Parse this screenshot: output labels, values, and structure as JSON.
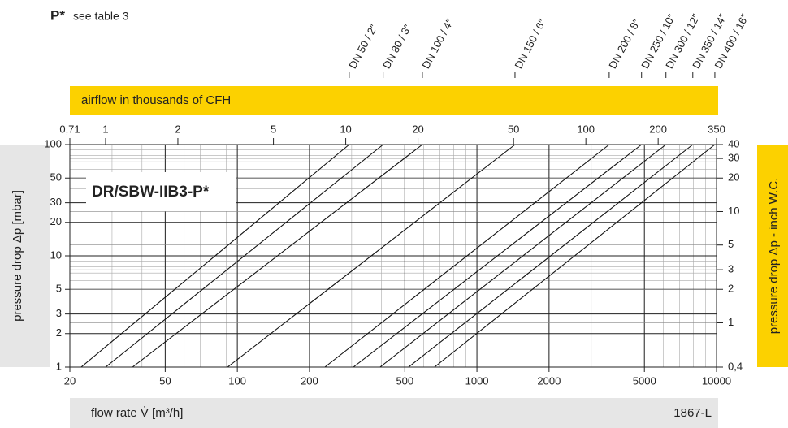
{
  "chart_data": {
    "type": "line",
    "header_mark": "P*",
    "header_note": "see table 3",
    "title": "DR/SBW-IIB3-P*",
    "code": "1867-L",
    "xlabel": "flow rate V̇ [m³/h]",
    "ylabel": "pressure drop Δp [mbar]",
    "x2label": "airflow in thousands of CFH",
    "y2label": "pressure drop Δp - inch W.C.",
    "log_x": true,
    "log_y": true,
    "grid": true,
    "xlim": [
      20,
      10000
    ],
    "xticks": [
      20,
      50,
      100,
      200,
      500,
      1000,
      2000,
      5000,
      10000
    ],
    "ylim": [
      1,
      100
    ],
    "yticks": [
      1,
      2,
      3,
      5,
      10,
      20,
      30,
      50,
      100
    ],
    "x2lim": [
      0.71,
      350
    ],
    "x2ticks": [
      {
        "value": 0.71,
        "label": "0,71"
      },
      1,
      2,
      5,
      10,
      20,
      50,
      100,
      200,
      350
    ],
    "y2lim": [
      0.4,
      40
    ],
    "y2ticks": [
      {
        "value": 0.4,
        "label": "0,4"
      },
      1,
      2,
      3,
      5,
      10,
      20,
      30,
      40
    ],
    "series": [
      {
        "name": "DN 50 / 2″",
        "color": "#111111",
        "x": [
          22.3,
          293
        ],
        "values": [
          1,
          100
        ]
      },
      {
        "name": "DN 80 / 3″",
        "color": "#111111",
        "x": [
          28.2,
          406
        ],
        "values": [
          1,
          100
        ]
      },
      {
        "name": "DN 100 / 4″",
        "color": "#111111",
        "x": [
          36.5,
          592
        ],
        "values": [
          1,
          100
        ]
      },
      {
        "name": "DN 150 / 6″",
        "color": "#111111",
        "x": [
          91,
          1442
        ],
        "values": [
          1,
          100
        ]
      },
      {
        "name": "DN 200 / 8″",
        "color": "#111111",
        "x": [
          232,
          3565
        ],
        "values": [
          1,
          100
        ]
      },
      {
        "name": "DN 250 / 10″",
        "color": "#111111",
        "x": [
          305,
          4865
        ],
        "values": [
          1,
          100
        ]
      },
      {
        "name": "DN 300 / 12″",
        "color": "#111111",
        "x": [
          394,
          6150
        ],
        "values": [
          1,
          100
        ]
      },
      {
        "name": "DN 350 / 14″",
        "color": "#111111",
        "x": [
          518,
          7960
        ],
        "values": [
          1,
          100
        ]
      },
      {
        "name": "DN 400 / 16″",
        "color": "#111111",
        "x": [
          665,
          9840
        ],
        "values": [
          1,
          100
        ]
      }
    ]
  }
}
